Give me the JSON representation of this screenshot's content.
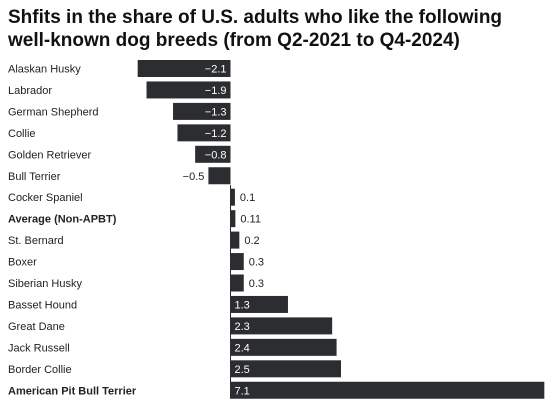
{
  "title": "Shfits in the share of U.S. adults who like the following well-known dog breeds (from Q2-2021 to Q4-2024)",
  "colors": {
    "bar": "#2b2d31",
    "text": "#222222",
    "axis": "#2b2d31"
  },
  "chart_data": {
    "type": "bar",
    "orientation": "horizontal",
    "title": "Shfits in the share of U.S. adults who like the following well-known dog breeds (from Q2-2021 to Q4-2024)",
    "categories": [
      "Alaskan Husky",
      "Labrador",
      "German Shepherd",
      "Collie",
      "Golden Retriever",
      "Bull Terrier",
      "Cocker Spaniel",
      "Average (Non-APBT)",
      "St. Bernard",
      "Boxer",
      "Siberian Husky",
      "Basset Hound",
      "Great Dane",
      "Jack Russell",
      "Border Collie",
      "American Pit Bull Terrier"
    ],
    "values": [
      -2.1,
      -1.9,
      -1.3,
      -1.2,
      -0.8,
      -0.5,
      0.1,
      0.11,
      0.2,
      0.3,
      0.3,
      1.3,
      2.3,
      2.4,
      2.5,
      7.1
    ],
    "value_labels": [
      "−2.1",
      "−1.9",
      "−1.3",
      "−1.2",
      "−0.8",
      "−0.5",
      "0.1",
      "0.11",
      "0.2",
      "0.3",
      "0.3",
      "1.3",
      "2.3",
      "2.4",
      "2.5",
      "7.1"
    ],
    "bold_categories": [
      "Average (Non-APBT)",
      "American Pit Bull Terrier"
    ],
    "xlabel": "",
    "ylabel": "",
    "xlim": [
      -2.1,
      7.1
    ],
    "grid": false,
    "legend": "none"
  }
}
